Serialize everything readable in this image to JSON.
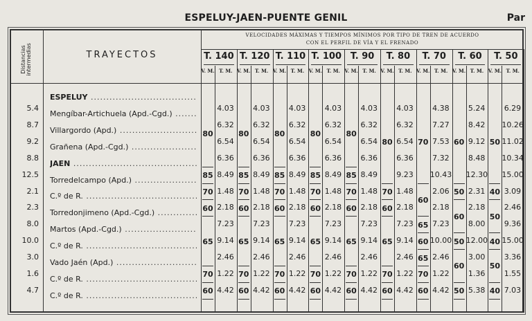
{
  "header": {
    "title": "ESPELUY-JAEN-PUENTE GENIL",
    "page_side": "Par"
  },
  "table": {
    "distance_header": "Distancias intermedias",
    "route_header": "TRAYECTOS",
    "speed_header_line1": "VELOCIDADES MÁXIMAS Y TIEMPOS MÍNIMOS POR TIPO DE TREN DE ACUERDO",
    "speed_header_line2": "CON EL PERFIL DE VÍA Y EL FRENADO",
    "vm_label": "V. M.",
    "tm_label": "T. M.",
    "stations": [
      {
        "name": "ESPELUY",
        "bold": true
      },
      {
        "name": "Mengíbar-Artichuela (Apd.-Cgd.)",
        "bold": false
      },
      {
        "name": "Villargordo (Apd.)",
        "bold": false
      },
      {
        "name": "Grañena (Apd.-Cgd.)",
        "bold": false
      },
      {
        "name": "JAEN",
        "bold": true
      },
      {
        "name": "Torredelcampo (Apd.)",
        "bold": false
      },
      {
        "name": "C.º de R.",
        "bold": false
      },
      {
        "name": "Torredonjimeno (Apd.-Cgd.)",
        "bold": false
      },
      {
        "name": "Martos (Apd.-Cgd.)",
        "bold": false
      },
      {
        "name": "C.º de R.",
        "bold": false
      },
      {
        "name": "Vado Jaén (Apd.)",
        "bold": false
      },
      {
        "name": "C.º de R.",
        "bold": false
      },
      {
        "name": "C.º de R.",
        "bold": false
      }
    ],
    "distances": [
      "5.4",
      "8.7",
      "9.2",
      "8.8",
      "12.5",
      "2.1",
      "2.3",
      "8.0",
      "10.0",
      "3.0",
      "1.6",
      "4.7"
    ],
    "trains": [
      {
        "label": "T. 140",
        "vm": [
          {
            "v": "80",
            "from": 0,
            "to": 3
          },
          {
            "v": "85",
            "from": 4,
            "to": 4
          },
          {
            "v": "70",
            "from": 5,
            "to": 5
          },
          {
            "v": "60",
            "from": 6,
            "to": 6
          },
          {
            "v": "65",
            "from": 7,
            "to": 9
          },
          {
            "v": "70",
            "from": 10,
            "to": 10
          },
          {
            "v": "60",
            "from": 11,
            "to": 11
          }
        ],
        "tm": [
          "4.03",
          "6.32",
          "6.54",
          "6.36",
          "8.49",
          "1.48",
          "2.18",
          "7.23",
          "9.14",
          "2.46",
          "1.22",
          "4.42"
        ]
      },
      {
        "label": "T. 120",
        "vm": [
          {
            "v": "80",
            "from": 0,
            "to": 3
          },
          {
            "v": "85",
            "from": 4,
            "to": 4
          },
          {
            "v": "70",
            "from": 5,
            "to": 5
          },
          {
            "v": "60",
            "from": 6,
            "to": 6
          },
          {
            "v": "65",
            "from": 7,
            "to": 9
          },
          {
            "v": "70",
            "from": 10,
            "to": 10
          },
          {
            "v": "60",
            "from": 11,
            "to": 11
          }
        ],
        "tm": [
          "4.03",
          "6.32",
          "6.54",
          "6.36",
          "8.49",
          "1.48",
          "2.18",
          "7.23",
          "9.14",
          "2.46",
          "1.22",
          "4.42"
        ]
      },
      {
        "label": "T. 110",
        "vm": [
          {
            "v": "80",
            "from": 0,
            "to": 3
          },
          {
            "v": "85",
            "from": 4,
            "to": 4
          },
          {
            "v": "70",
            "from": 5,
            "to": 5
          },
          {
            "v": "60",
            "from": 6,
            "to": 6
          },
          {
            "v": "65",
            "from": 7,
            "to": 9
          },
          {
            "v": "70",
            "from": 10,
            "to": 10
          },
          {
            "v": "60",
            "from": 11,
            "to": 11
          }
        ],
        "tm": [
          "4.03",
          "6.32",
          "6.54",
          "6.36",
          "8.49",
          "1.48",
          "2.18",
          "7.23",
          "9.14",
          "2.46",
          "1.22",
          "4.42"
        ]
      },
      {
        "label": "T. 100",
        "vm": [
          {
            "v": "80",
            "from": 0,
            "to": 3
          },
          {
            "v": "85",
            "from": 4,
            "to": 4
          },
          {
            "v": "70",
            "from": 5,
            "to": 5
          },
          {
            "v": "60",
            "from": 6,
            "to": 6
          },
          {
            "v": "65",
            "from": 7,
            "to": 9
          },
          {
            "v": "70",
            "from": 10,
            "to": 10
          },
          {
            "v": "60",
            "from": 11,
            "to": 11
          }
        ],
        "tm": [
          "4.03",
          "6.32",
          "6.54",
          "6.36",
          "8.49",
          "1.48",
          "2.18",
          "7.23",
          "9.14",
          "2.46",
          "1.22",
          "4.42"
        ]
      },
      {
        "label": "T. 90",
        "vm": [
          {
            "v": "80",
            "from": 0,
            "to": 3
          },
          {
            "v": "85",
            "from": 4,
            "to": 4
          },
          {
            "v": "70",
            "from": 5,
            "to": 5
          },
          {
            "v": "60",
            "from": 6,
            "to": 6
          },
          {
            "v": "65",
            "from": 7,
            "to": 9
          },
          {
            "v": "70",
            "from": 10,
            "to": 10
          },
          {
            "v": "60",
            "from": 11,
            "to": 11
          }
        ],
        "tm": [
          "4.03",
          "6.32",
          "6.54",
          "6.36",
          "8.49",
          "1.48",
          "2.18",
          "7.23",
          "9.14",
          "2.46",
          "1.22",
          "4.42"
        ]
      },
      {
        "label": "T. 80",
        "vm": [
          {
            "v": "80",
            "from": 0,
            "to": 4
          },
          {
            "v": "70",
            "from": 5,
            "to": 5
          },
          {
            "v": "60",
            "from": 6,
            "to": 6
          },
          {
            "v": "65",
            "from": 7,
            "to": 9
          },
          {
            "v": "70",
            "from": 10,
            "to": 10
          },
          {
            "v": "60",
            "from": 11,
            "to": 11
          }
        ],
        "tm": [
          "4.03",
          "6.32",
          "6.54",
          "6.36",
          "9.23",
          "1.48",
          "2.18",
          "7.23",
          "9.14",
          "2.46",
          "1.22",
          "4.42"
        ]
      },
      {
        "label": "T. 70",
        "vm": [
          {
            "v": "70",
            "from": 0,
            "to": 4
          },
          {
            "v": "60",
            "from": 5,
            "to": 6
          },
          {
            "v": "65",
            "from": 7,
            "to": 7
          },
          {
            "v": "60",
            "from": 8,
            "to": 8
          },
          {
            "v": "65",
            "from": 9,
            "to": 9
          },
          {
            "v": "70",
            "from": 10,
            "to": 10
          },
          {
            "v": "60",
            "from": 11,
            "to": 11
          }
        ],
        "tm": [
          "4.38",
          "7.27",
          "7.53",
          "7.32",
          "10.43",
          "2.06",
          "2.18",
          "7.23",
          "10.00",
          "2.46",
          "1.22",
          "4.42"
        ]
      },
      {
        "label": "T. 60",
        "vm": [
          {
            "v": "60",
            "from": 0,
            "to": 4
          },
          {
            "v": "50",
            "from": 5,
            "to": 5
          },
          {
            "v": "60",
            "from": 6,
            "to": 7
          },
          {
            "v": "50",
            "from": 8,
            "to": 8
          },
          {
            "v": "60",
            "from": 9,
            "to": 10
          },
          {
            "v": "50",
            "from": 11,
            "to": 11
          }
        ],
        "tm": [
          "5.24",
          "8.42",
          "9.12",
          "8.48",
          "12.30",
          "2.31",
          "2.18",
          "8.00",
          "12.00",
          "3.00",
          "1.36",
          "5.38"
        ]
      },
      {
        "label": "T. 50",
        "vm": [
          {
            "v": "50",
            "from": 0,
            "to": 4
          },
          {
            "v": "40",
            "from": 5,
            "to": 5
          },
          {
            "v": "50",
            "from": 6,
            "to": 7
          },
          {
            "v": "40",
            "from": 8,
            "to": 8
          },
          {
            "v": "50",
            "from": 9,
            "to": 10
          },
          {
            "v": "40",
            "from": 11,
            "to": 11
          }
        ],
        "tm": [
          "6.29",
          "10.26",
          "11.02",
          "10.34",
          "15.00",
          "3.09",
          "2.46",
          "9.36",
          "15.00",
          "3.36",
          "1.55",
          "7.03"
        ]
      }
    ]
  }
}
